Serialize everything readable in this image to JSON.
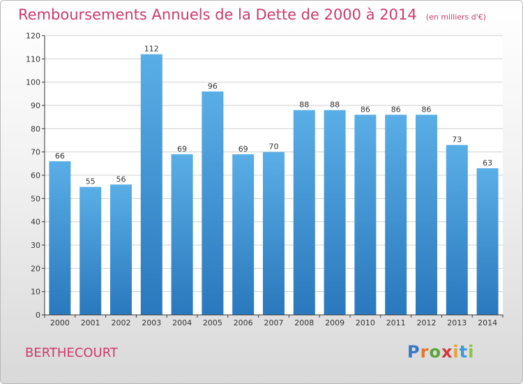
{
  "header": {
    "title": "Remboursements Annuels de la Dette de 2000 à 2014",
    "unit": "(en milliers d'€)"
  },
  "commune": "BERTHECOURT",
  "brand": {
    "name": "Proxiti",
    "letters": [
      {
        "ch": "P",
        "color": "#3a76c4"
      },
      {
        "ch": "r",
        "color": "#e8742a"
      },
      {
        "ch": "o",
        "color": "#5aa33a"
      },
      {
        "ch": "x",
        "color": "#d33a3a"
      },
      {
        "ch": "i",
        "color": "#e8a22a"
      },
      {
        "ch": "t",
        "color": "#3a9ad9"
      },
      {
        "ch": "i",
        "color": "#8cc43a"
      }
    ]
  },
  "colors": {
    "title": "#cc3b6c",
    "bar_light": "#5aaee6",
    "bar_dark": "#2a78bd",
    "axis": "#333333",
    "grid": "#d0d0d0"
  },
  "chart_data": {
    "type": "bar",
    "title": "Remboursements Annuels de la Dette de 2000 à 2014",
    "categories": [
      "2000",
      "2001",
      "2002",
      "2003",
      "2004",
      "2005",
      "2006",
      "2007",
      "2008",
      "2009",
      "2010",
      "2011",
      "2012",
      "2013",
      "2014"
    ],
    "values": [
      66,
      55,
      56,
      112,
      69,
      96,
      69,
      70,
      88,
      88,
      86,
      86,
      86,
      73,
      63
    ],
    "ylim": [
      0,
      120
    ],
    "yticks": [
      0,
      10,
      20,
      30,
      40,
      50,
      60,
      70,
      80,
      90,
      100,
      110,
      120
    ],
    "grid": true,
    "data_labels": true
  }
}
